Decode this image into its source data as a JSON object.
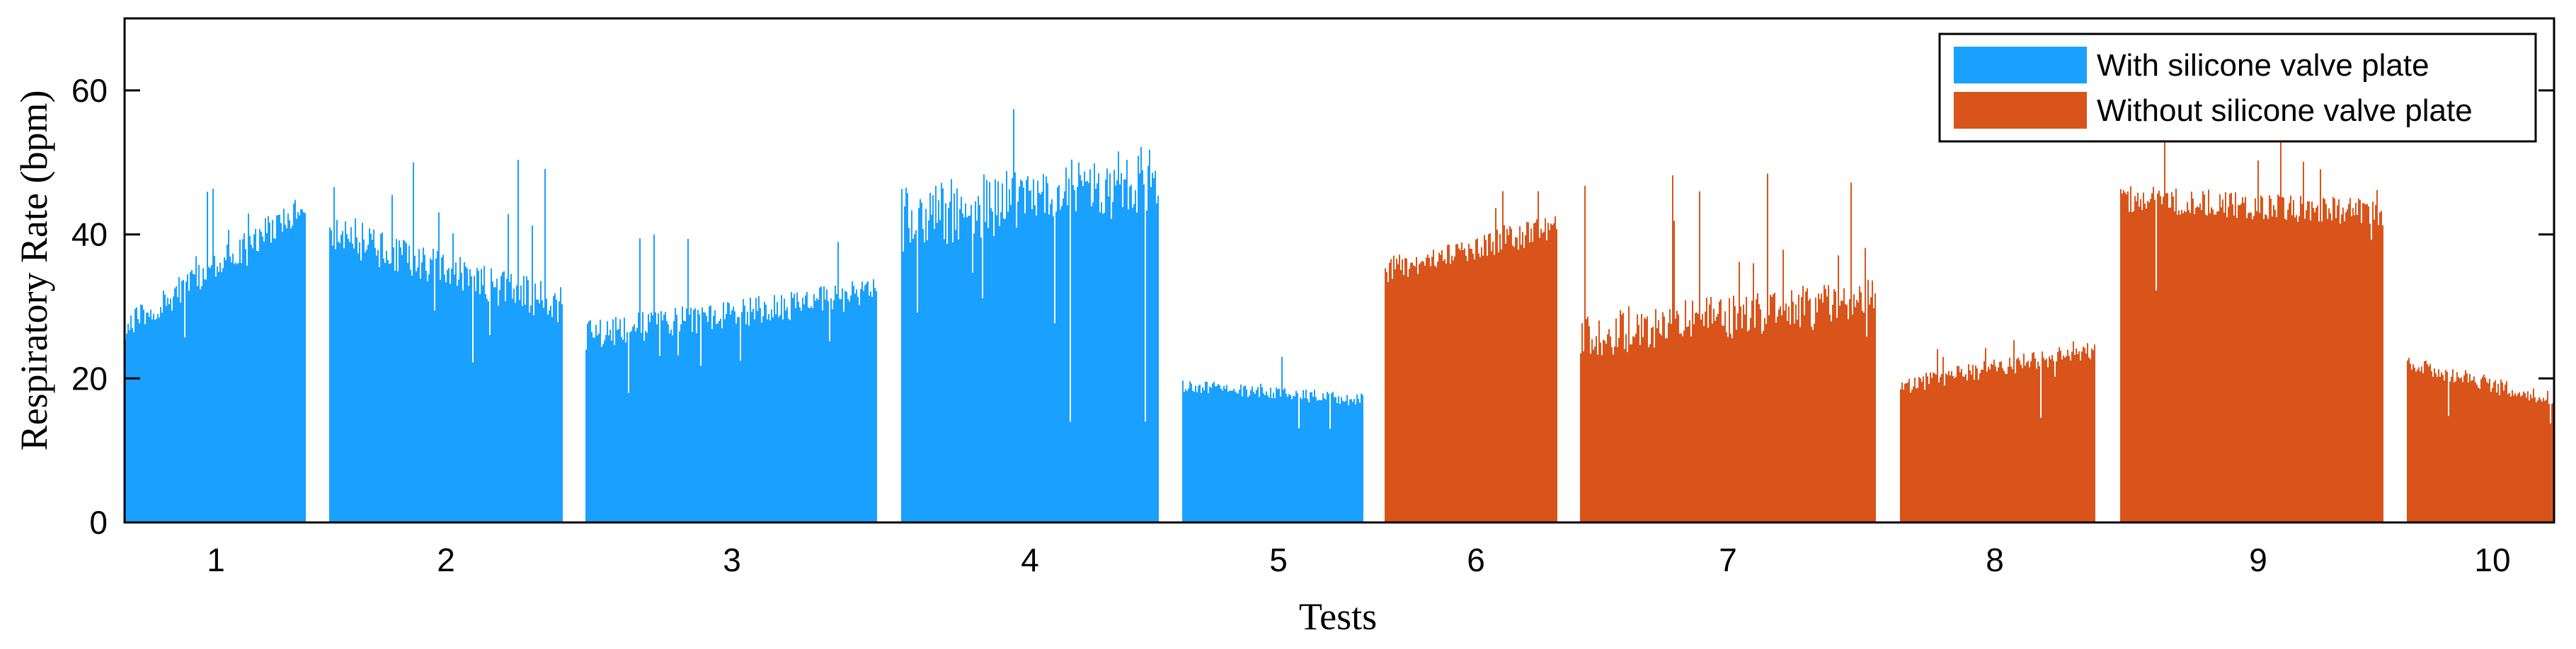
{
  "chart_data": {
    "type": "bar",
    "xlabel": "Tests",
    "ylabel": "Respiratory Rate (bpm)",
    "ylim": [
      0,
      70
    ],
    "yticks": [
      0,
      20,
      40,
      60
    ],
    "grid": false,
    "legend_position": "top-right",
    "series": [
      {
        "name": "With silicone valve plate",
        "color": "#1aa0ff",
        "tests": [
          1,
          2,
          3,
          4,
          5
        ]
      },
      {
        "name": "Without silicone valve plate",
        "color": "#d9541a",
        "tests": [
          6,
          7,
          8,
          9,
          10
        ]
      }
    ],
    "tests": [
      {
        "label": "1",
        "series": 0,
        "start": 27,
        "end": 44,
        "min": 24,
        "max": 47
      },
      {
        "label": "2",
        "series": 0,
        "start": 40,
        "end": 30,
        "min": 21,
        "max": 51
      },
      {
        "label": "3",
        "series": 0,
        "start": 26,
        "end": 32,
        "min": 17,
        "max": 40
      },
      {
        "label": "4",
        "series": 0,
        "start": 42,
        "end": 48,
        "min": 14,
        "max": 65
      },
      {
        "label": "5",
        "series": 0,
        "start": 19,
        "end": 17,
        "min": 13,
        "max": 23
      },
      {
        "label": "6",
        "series": 1,
        "start": 35,
        "end": 41,
        "min": 26,
        "max": 46
      },
      {
        "label": "7",
        "series": 1,
        "start": 26,
        "end": 31,
        "min": 17,
        "max": 53
      },
      {
        "label": "8",
        "series": 1,
        "start": 19,
        "end": 24,
        "min": 13,
        "max": 27
      },
      {
        "label": "9",
        "series": 1,
        "start": 45,
        "end": 43,
        "min": 32,
        "max": 53
      },
      {
        "label": "10",
        "series": 1,
        "start": 22,
        "end": 17,
        "min": 12,
        "max": 25
      }
    ]
  }
}
